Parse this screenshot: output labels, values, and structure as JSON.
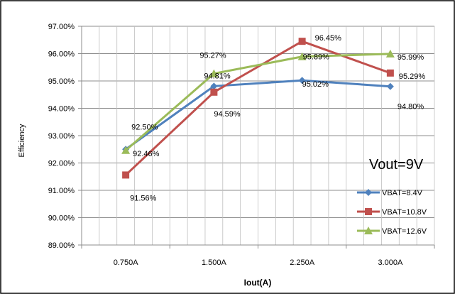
{
  "chart_data": {
    "type": "line",
    "xlabel": "Iout(A)",
    "ylabel": "Efficiency",
    "categories": [
      "0.750A",
      "1.500A",
      "2.250A",
      "3.000A"
    ],
    "ylim": [
      89.0,
      97.0
    ],
    "y_ticks": [
      89.0,
      90.0,
      91.0,
      92.0,
      93.0,
      94.0,
      95.0,
      96.0,
      97.0
    ],
    "y_tick_labels": [
      "89.00%",
      "90.00%",
      "91.00%",
      "92.00%",
      "93.00%",
      "94.00%",
      "95.00%",
      "96.00%",
      "97.00%"
    ],
    "grid": true,
    "legend_position": "bottom-right",
    "annotation": "Vout=9V",
    "series": [
      {
        "name": "VBAT=8.4V",
        "color": "#4f81bd",
        "marker": "diamond",
        "values": [
          92.5,
          94.81,
          95.02,
          94.8
        ],
        "labels": [
          "92.50%",
          "94.81%",
          "95.02%",
          "94.80%"
        ]
      },
      {
        "name": "VBAT=10.8V",
        "color": "#c0504d",
        "marker": "square",
        "values": [
          91.56,
          94.59,
          96.45,
          95.29
        ],
        "labels": [
          "91.56%",
          "94.59%",
          "96.45%",
          "95.29%"
        ]
      },
      {
        "name": "VBAT=12.6V",
        "color": "#9bbb59",
        "marker": "triangle",
        "values": [
          92.46,
          95.27,
          95.89,
          95.99
        ],
        "labels": [
          "92.46%",
          "95.27%",
          "95.89%",
          "95.99%"
        ]
      }
    ]
  }
}
